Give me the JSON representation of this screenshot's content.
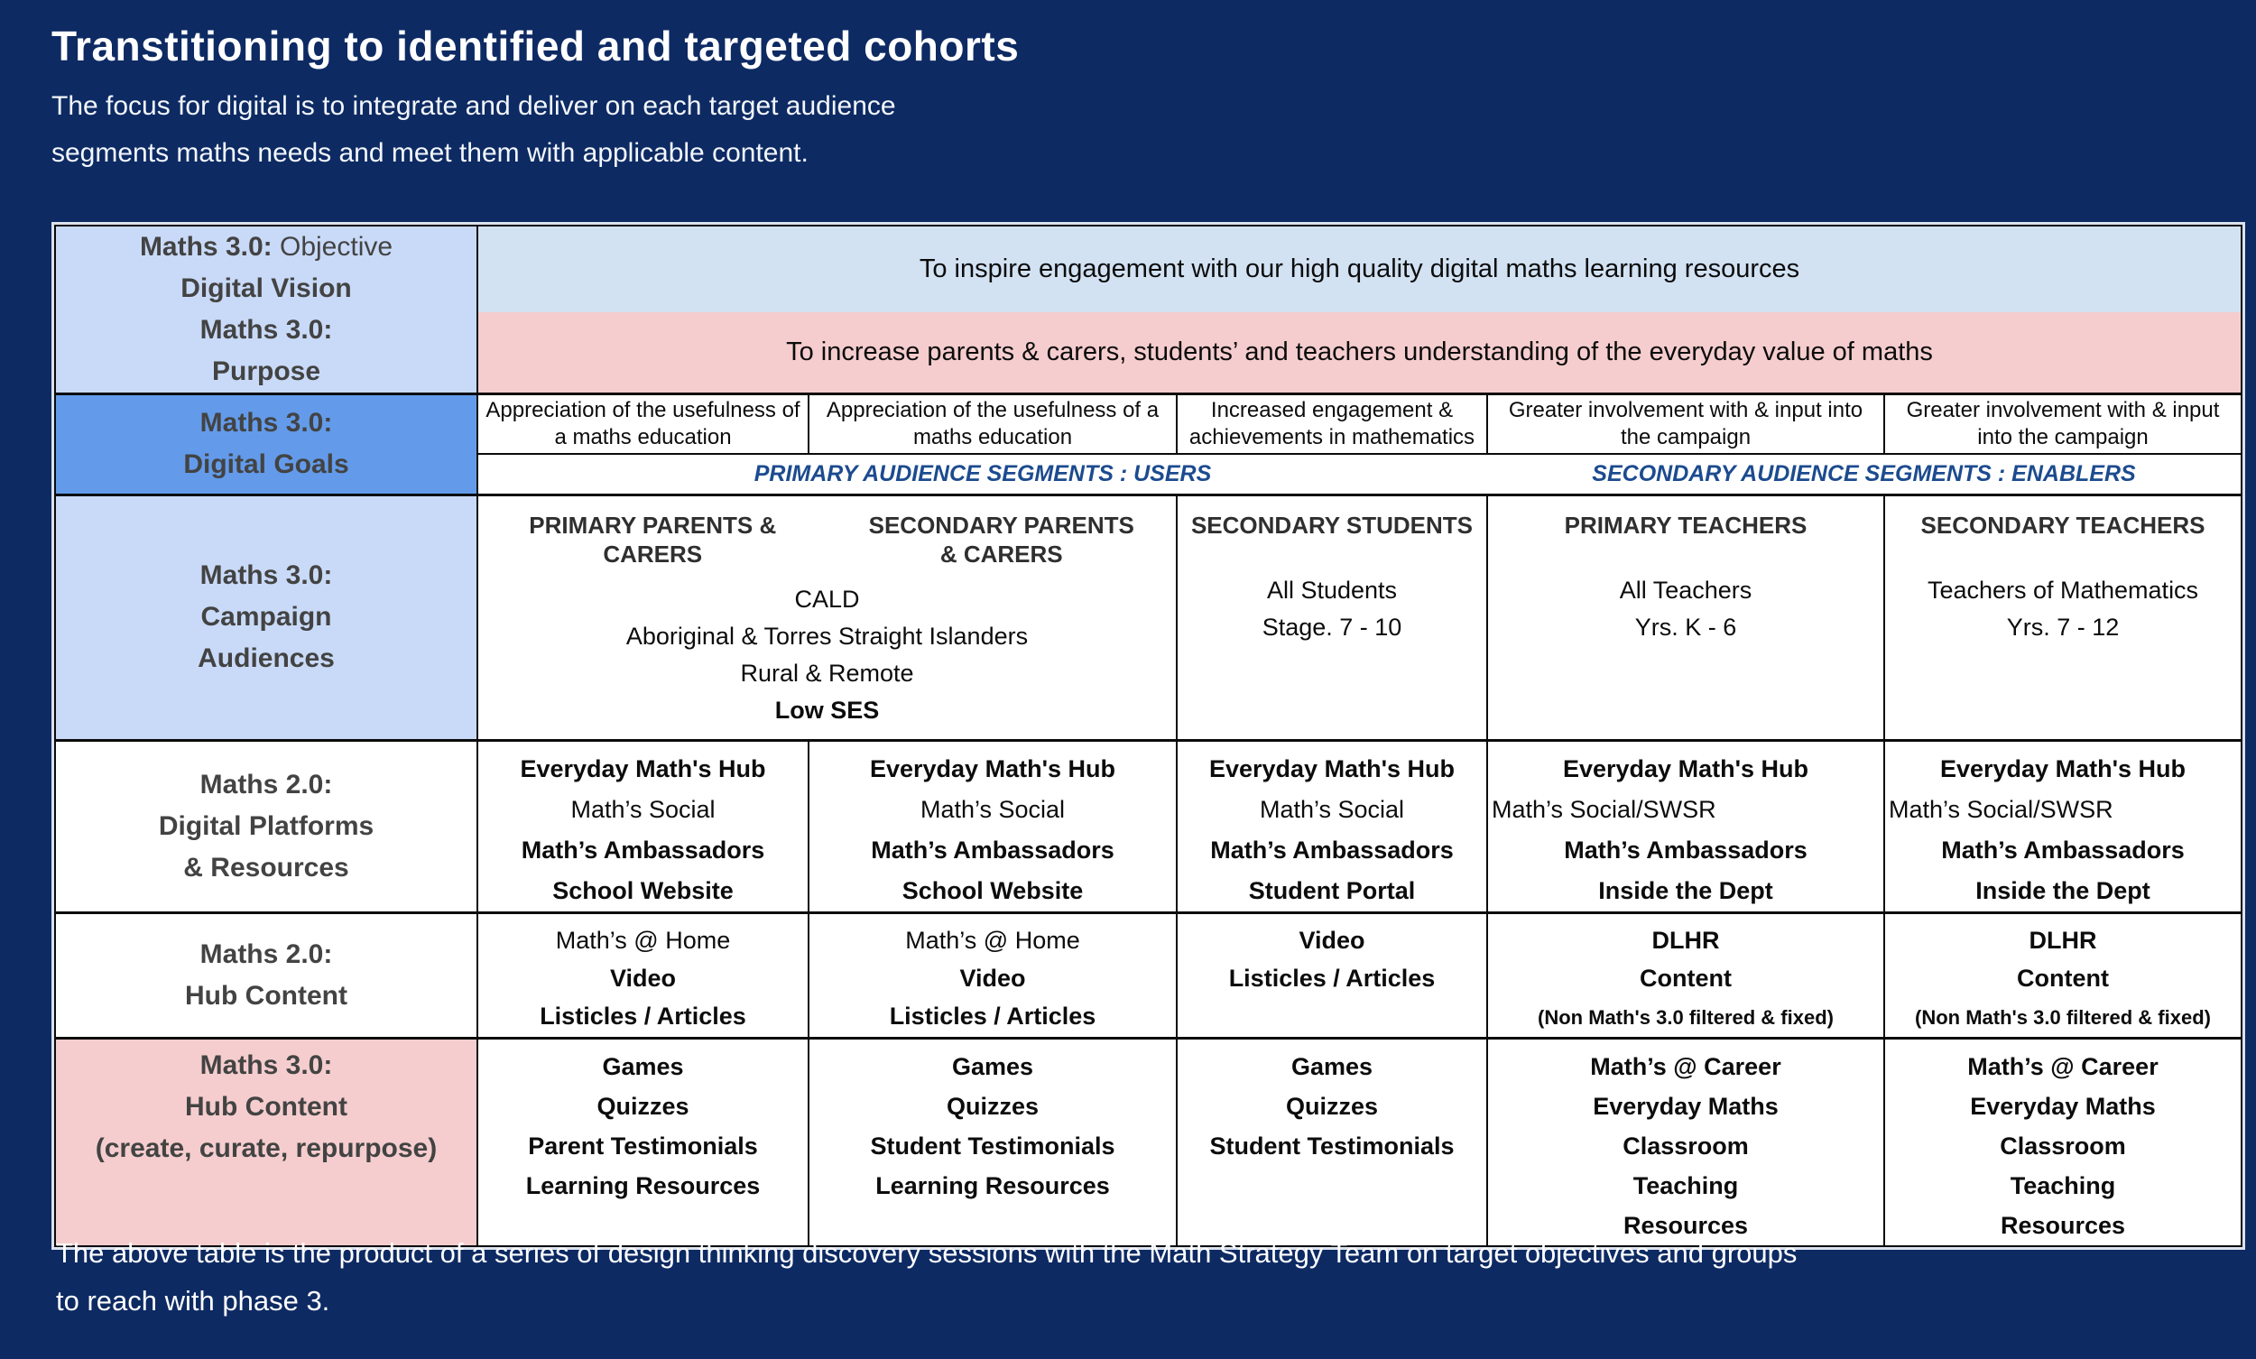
{
  "page": {
    "title": "Transtitioning to identified and targeted cohorts",
    "subtitle_line1": "The focus for digital is to integrate and deliver on each target audience",
    "subtitle_line2": "segments maths needs and meet them with applicable content.",
    "footnote_line1": "The above table is the product of a series of design thinking discovery sessions with the Math Strategy Team on target objectives and groups",
    "footnote_line2": "to reach with phase 3."
  },
  "colors": {
    "background": "#0d2a63",
    "light_cornflower_cell": "#c9daf8",
    "light_blue_cell": "#d2e2f3",
    "medium_blue_cell": "#639bea",
    "pink_cell": "#f5cdce",
    "header_text": "#434343",
    "segment_label_text": "#1c4b8f"
  },
  "table": {
    "header_col": {
      "objective": {
        "lines": [
          [
            {
              "t": "Maths 3.0:",
              "b": 1
            },
            {
              "t": " Objective"
            }
          ],
          [
            {
              "t": "Digital Vision",
              "b": 1
            }
          ],
          [
            {
              "t": "Maths 3.0:",
              "b": 1
            }
          ],
          [
            {
              "t": "Purpose",
              "b": 1
            }
          ]
        ]
      },
      "goals": {
        "lines": [
          {
            "t": "Maths 3.0:",
            "b": 1
          },
          {
            "t": "Digital Goals",
            "b": 1
          }
        ]
      },
      "audiences": {
        "lines": [
          {
            "t": "Maths 3.0:",
            "b": 1
          },
          {
            "t": "Campaign",
            "b": 1
          },
          {
            "t": "Audiences",
            "b": 1
          }
        ]
      },
      "platforms": {
        "lines": [
          {
            "t": "Maths 2.0:",
            "b": 1
          },
          {
            "t": "Digital Platforms",
            "b": 1
          },
          {
            "t": "& Resources",
            "b": 1
          }
        ]
      },
      "hub20": {
        "lines": [
          {
            "t": "Maths 2.0:",
            "b": 1
          },
          {
            "t": "Hub Content",
            "b": 1
          }
        ]
      },
      "hub30": {
        "lines": [
          {
            "t": "Maths 3.0:",
            "b": 1
          },
          {
            "t": "Hub Content",
            "b": 1
          },
          {
            "t": "(create, curate, repurpose)",
            "b": 1
          }
        ]
      }
    },
    "vision_text": "To inspire engagement with our high quality digital maths learning resources",
    "purpose_text": "To increase parents & carers, students’ and teachers understanding of the everyday value of maths",
    "goals": [
      "Appreciation of the usefulness of a maths education",
      "Appreciation of the usefulness of a maths education",
      "Increased engagement & achievements in mathematics",
      "Greater involvement with & input into the campaign",
      "Greater involvement with & input into the campaign"
    ],
    "segments": {
      "primary": "PRIMARY AUDIENCE SEGMENTS : USERS",
      "secondary": "SECONDARY AUDIENCE SEGMENTS : ENABLERS"
    },
    "audiences": {
      "parents": {
        "primary_header": [
          {
            "t": "PRIMARY PARENTS &",
            "b": 1
          },
          {
            "t": "CARERS",
            "b": 1
          }
        ],
        "secondary_header": [
          {
            "t": "SECONDARY PARENTS",
            "b": 1
          },
          {
            "t": "& CARERS",
            "b": 1
          }
        ],
        "groups": [
          {
            "t": "CALD"
          },
          {
            "t": "Aboriginal & Torres Straight Islanders"
          },
          {
            "t": "Rural & Remote"
          },
          {
            "t": "Low SES",
            "b": 1
          }
        ]
      },
      "students": {
        "header": "SECONDARY STUDENTS",
        "lines": [
          {
            "t": "All Students"
          },
          {
            "t": "Stage. 7 - 10"
          }
        ]
      },
      "primary_teachers": {
        "header": "PRIMARY TEACHERS",
        "lines": [
          {
            "t": "All Teachers"
          },
          {
            "t": "Yrs. K - 6"
          }
        ]
      },
      "secondary_teachers": {
        "header": "SECONDARY TEACHERS",
        "lines": [
          {
            "t": "Teachers of Mathematics"
          },
          {
            "t": "Yrs. 7 - 12"
          }
        ]
      }
    },
    "platforms": {
      "cells": [
        [
          {
            "t": "Everyday Math's Hub",
            "b": 1
          },
          {
            "t": "Math’s Social"
          },
          {
            "t": "Math’s Ambassadors",
            "b": 1
          },
          {
            "t": "School Website",
            "b": 1
          }
        ],
        [
          {
            "t": "Everyday Math's Hub",
            "b": 1
          },
          {
            "t": "Math’s Social"
          },
          {
            "t": "Math’s Ambassadors",
            "b": 1
          },
          {
            "t": "School Website",
            "b": 1
          }
        ],
        [
          {
            "t": "Everyday Math's Hub",
            "b": 1
          },
          {
            "t": "Math’s Social"
          },
          {
            "t": "Math’s Ambassadors",
            "b": 1
          },
          {
            "t": "Student Portal",
            "b": 1
          }
        ],
        [
          {
            "t": "Everyday Math's Hub",
            "b": 1
          },
          {
            "t": "Math’s Social/SWSR",
            "l": 1
          },
          {
            "t": "Math’s Ambassadors",
            "b": 1
          },
          {
            "t": "Inside the Dept",
            "b": 1
          }
        ],
        [
          {
            "t": "Everyday Math's Hub",
            "b": 1
          },
          {
            "t": "Math’s Social/SWSR",
            "l": 1
          },
          {
            "t": "Math’s Ambassadors",
            "b": 1
          },
          {
            "t": "Inside the Dept",
            "b": 1
          }
        ]
      ]
    },
    "hub20": {
      "cells": [
        [
          {
            "t": "Math’s @ Home"
          },
          {
            "t": "Video",
            "b": 1
          },
          {
            "t": "Listicles / Articles",
            "b": 1
          }
        ],
        [
          {
            "t": "Math’s @ Home"
          },
          {
            "t": "Video",
            "b": 1
          },
          {
            "t": "Listicles / Articles",
            "b": 1
          }
        ],
        [
          {
            "t": "Video",
            "b": 1
          },
          {
            "t": "Listicles / Articles",
            "b": 1
          }
        ],
        [
          {
            "t": "DLHR",
            "b": 1
          },
          {
            "t": "Content",
            "b": 1
          },
          {
            "t": "(Non Math's 3.0 filtered & fixed)",
            "b": 1,
            "s": 1
          }
        ],
        [
          {
            "t": "DLHR",
            "b": 1
          },
          {
            "t": "Content",
            "b": 1
          },
          {
            "t": "(Non Math's 3.0 filtered & fixed)",
            "b": 1,
            "s": 1
          }
        ]
      ]
    },
    "hub30": {
      "cells": [
        [
          {
            "t": "Games",
            "b": 1
          },
          {
            "t": "Quizzes",
            "b": 1
          },
          {
            "t": "Parent Testimonials",
            "b": 1
          },
          {
            "t": "Learning Resources",
            "b": 1
          }
        ],
        [
          {
            "t": "Games",
            "b": 1
          },
          {
            "t": "Quizzes",
            "b": 1
          },
          {
            "t": "Student Testimonials",
            "b": 1
          },
          {
            "t": "Learning Resources",
            "b": 1
          }
        ],
        [
          {
            "t": "Games",
            "b": 1
          },
          {
            "t": "Quizzes",
            "b": 1
          },
          {
            "t": "Student Testimonials",
            "b": 1
          }
        ],
        [
          {
            "t": "Math’s @ Career",
            "b": 1
          },
          {
            "t": "Everyday Maths",
            "b": 1
          },
          {
            "t": "Classroom",
            "b": 1
          },
          {
            "t": "Teaching",
            "b": 1
          },
          {
            "t": "Resources",
            "b": 1
          }
        ],
        [
          {
            "t": "Math’s @ Career",
            "b": 1
          },
          {
            "t": "Everyday Maths",
            "b": 1
          },
          {
            "t": "Classroom",
            "b": 1
          },
          {
            "t": "Teaching",
            "b": 1
          },
          {
            "t": "Resources",
            "b": 1
          }
        ]
      ]
    }
  }
}
